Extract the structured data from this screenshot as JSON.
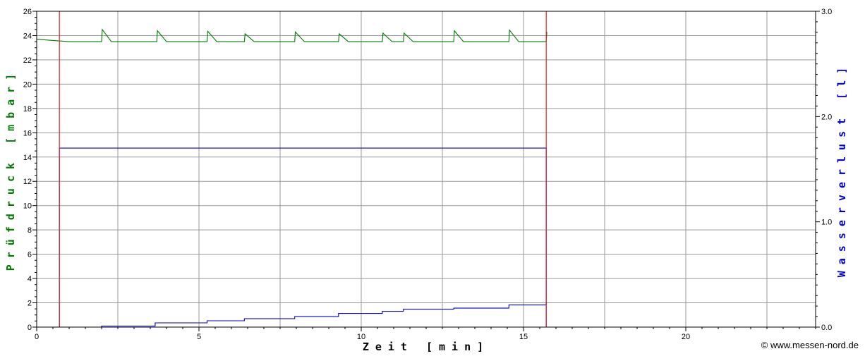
{
  "chart_data": {
    "type": "line",
    "xlabel": "Zeit [min]",
    "ylabel_left": "Prüfdruck [mbar]",
    "ylabel_right": "Wasserverlust [l]",
    "xlim": [
      0,
      24
    ],
    "ylim_left": [
      0,
      26
    ],
    "ylim_right": [
      0,
      3.0
    ],
    "x_ticks": [
      "0",
      "5",
      "10",
      "15",
      "20"
    ],
    "y_ticks_left": [
      "0",
      "2",
      "4",
      "6",
      "8",
      "10",
      "12",
      "14",
      "16",
      "18",
      "20",
      "22",
      "24",
      "26"
    ],
    "y_ticks_right": [
      "0.0",
      "1.0",
      "2.0",
      "3.0"
    ],
    "grid": true,
    "colors": {
      "pressure": "#007a00",
      "water": "#0000cc",
      "markers": "#e02020",
      "grid": "#9a9a9a"
    },
    "markers_x": [
      0.7,
      15.7
    ],
    "series": [
      {
        "axis": "left",
        "color": "#007a00",
        "points": [
          [
            0,
            23.7
          ],
          [
            0.5,
            23.6
          ],
          [
            1.0,
            23.5
          ],
          [
            1.8,
            23.5
          ],
          [
            2.0,
            23.5
          ],
          [
            2.02,
            24.5
          ],
          [
            2.3,
            23.5
          ],
          [
            3.7,
            23.5
          ],
          [
            3.72,
            24.4
          ],
          [
            4.0,
            23.5
          ],
          [
            5.25,
            23.5
          ],
          [
            5.27,
            24.35
          ],
          [
            5.55,
            23.5
          ],
          [
            6.4,
            23.5
          ],
          [
            6.42,
            24.15
          ],
          [
            6.7,
            23.5
          ],
          [
            7.95,
            23.5
          ],
          [
            7.97,
            24.3
          ],
          [
            8.25,
            23.5
          ],
          [
            9.3,
            23.5
          ],
          [
            9.32,
            24.15
          ],
          [
            9.6,
            23.5
          ],
          [
            10.65,
            23.5
          ],
          [
            10.67,
            24.2
          ],
          [
            10.95,
            23.5
          ],
          [
            11.3,
            23.5
          ],
          [
            11.32,
            24.2
          ],
          [
            11.6,
            23.5
          ],
          [
            12.85,
            23.5
          ],
          [
            12.87,
            24.4
          ],
          [
            13.15,
            23.5
          ],
          [
            14.55,
            23.5
          ],
          [
            14.57,
            24.45
          ],
          [
            14.85,
            23.5
          ],
          [
            15.7,
            23.5
          ],
          [
            15.72,
            24.3
          ]
        ]
      },
      {
        "axis": "right",
        "color": "#0000cc",
        "points": [
          [
            0.7,
            0.0
          ],
          [
            0.7,
            1.7
          ],
          [
            15.7,
            1.7
          ],
          [
            15.7,
            0.0
          ]
        ]
      },
      {
        "axis": "right",
        "color": "#0000cc",
        "points": [
          [
            2.0,
            0.0
          ],
          [
            2.0,
            0.01
          ],
          [
            3.65,
            0.01
          ],
          [
            3.65,
            0.04
          ],
          [
            5.25,
            0.04
          ],
          [
            5.25,
            0.06
          ],
          [
            6.4,
            0.06
          ],
          [
            6.4,
            0.08
          ],
          [
            7.95,
            0.08
          ],
          [
            7.95,
            0.1
          ],
          [
            9.3,
            0.1
          ],
          [
            9.3,
            0.13
          ],
          [
            10.65,
            0.13
          ],
          [
            10.65,
            0.15
          ],
          [
            11.3,
            0.15
          ],
          [
            11.3,
            0.17
          ],
          [
            12.85,
            0.17
          ],
          [
            12.85,
            0.18
          ],
          [
            14.55,
            0.18
          ],
          [
            14.55,
            0.21
          ],
          [
            15.7,
            0.21
          ],
          [
            15.7,
            0.24
          ]
        ]
      }
    ]
  },
  "copyright": "© www.messen-nord.de"
}
